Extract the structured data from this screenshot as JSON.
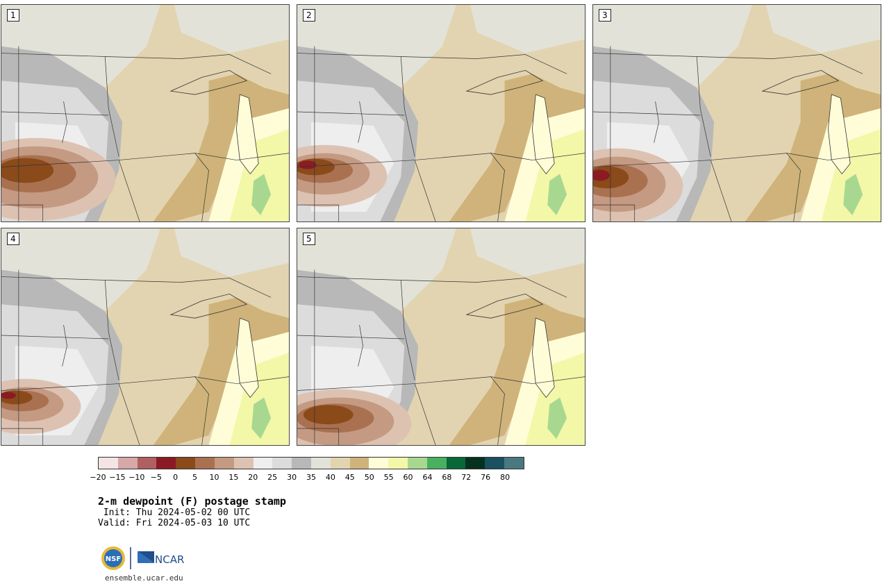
{
  "panels": [
    {
      "label": "1"
    },
    {
      "label": "2"
    },
    {
      "label": "3"
    },
    {
      "label": "4"
    },
    {
      "label": "5"
    }
  ],
  "colorbar": {
    "colors": [
      "#f4e4e4",
      "#d6a8a8",
      "#b06060",
      "#8c1a24",
      "#8a4a1a",
      "#a97150",
      "#c49a82",
      "#ddc2b2",
      "#eeeeee",
      "#dcdcdc",
      "#b8b8b8",
      "#e2e2d8",
      "#e2d4b0",
      "#cfb37a",
      "#fffdd8",
      "#f3f7a8",
      "#a8d890",
      "#48b060",
      "#086838",
      "#063020",
      "#1a5060",
      "#4a7880"
    ],
    "ticks": [
      "−20",
      "−15",
      "−10",
      "−5",
      "0",
      "5",
      "10",
      "15",
      "20",
      "25",
      "30",
      "35",
      "40",
      "45",
      "50",
      "55",
      "60",
      "64",
      "68",
      "72",
      "76",
      "80"
    ]
  },
  "title": "2-m dewpoint (F) postage stamp",
  "init": " Init: Thu 2024-05-02 00 UTC",
  "valid": "Valid: Fri 2024-05-03 10 UTC",
  "logos": {
    "nsf": "NSF",
    "ncar": "NCAR"
  },
  "site": "ensemble.ucar.edu"
}
